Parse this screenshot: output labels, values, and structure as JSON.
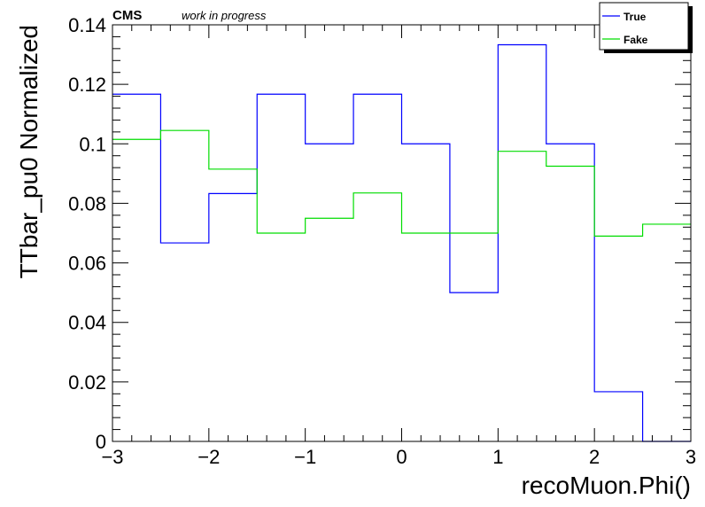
{
  "header": {
    "experiment": "CMS",
    "status": "work in progress"
  },
  "chart_data": {
    "type": "line",
    "style": "step-histogram",
    "xlabel": "recoMuon.Phi()",
    "ylabel": "TTbar_pu0 Normalized",
    "xlim": [
      -3,
      3
    ],
    "ylim": [
      0,
      0.14
    ],
    "bin_edges": [
      -3,
      -2.5,
      -2,
      -1.5,
      -1,
      -0.5,
      0,
      0.5,
      1,
      1.5,
      2,
      2.5,
      3
    ],
    "xticks": [
      {
        "value": -3,
        "label": "−3"
      },
      {
        "value": -2,
        "label": "−2"
      },
      {
        "value": -1,
        "label": "−1"
      },
      {
        "value": 0,
        "label": "0"
      },
      {
        "value": 1,
        "label": "1"
      },
      {
        "value": 2,
        "label": "2"
      },
      {
        "value": 3,
        "label": "3"
      }
    ],
    "yticks": [
      {
        "value": 0,
        "label": "0"
      },
      {
        "value": 0.02,
        "label": "0.02"
      },
      {
        "value": 0.04,
        "label": "0.04"
      },
      {
        "value": 0.06,
        "label": "0.06"
      },
      {
        "value": 0.08,
        "label": "0.08"
      },
      {
        "value": 0.1,
        "label": "0.1"
      },
      {
        "value": 0.12,
        "label": "0.12"
      },
      {
        "value": 0.14,
        "label": "0.14"
      }
    ],
    "legend_position": "top-right",
    "series": [
      {
        "name": "True",
        "color": "#0000ff",
        "values": [
          0.1167,
          0.0667,
          0.0833,
          0.1167,
          0.1,
          0.1167,
          0.1,
          0.05,
          0.1333,
          0.1,
          0.0167,
          0
        ]
      },
      {
        "name": "Fake",
        "color": "#00dd00",
        "values": [
          0.1015,
          0.1045,
          0.0915,
          0.07,
          0.075,
          0.0835,
          0.07,
          0.07,
          0.0975,
          0.0925,
          0.069,
          0.073
        ]
      }
    ]
  }
}
